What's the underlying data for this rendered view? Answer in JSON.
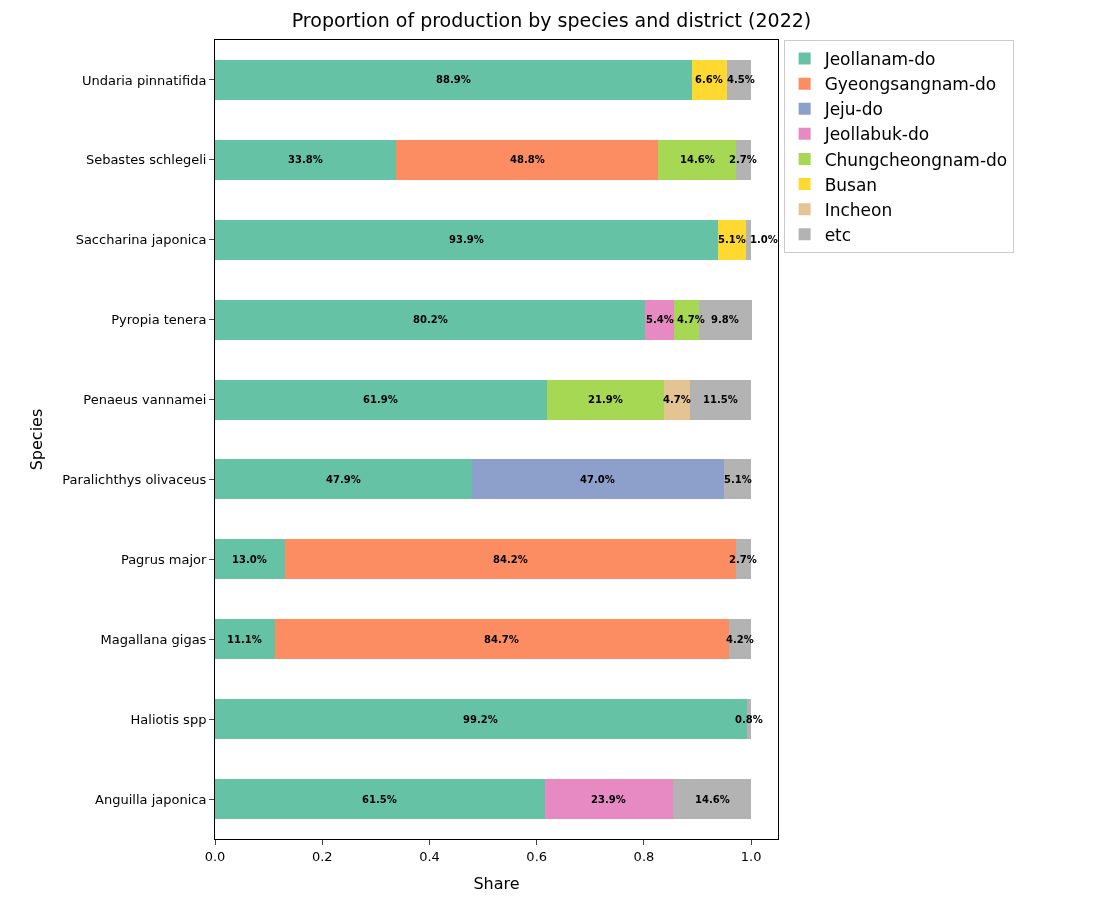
{
  "chart_data": {
    "type": "bar",
    "orientation": "horizontal",
    "stacked": true,
    "title": "Proportion of production by species and district (2022)",
    "xlabel": "Share",
    "ylabel": "Species",
    "categories": [
      "Undaria pinnatifida",
      "Sebastes schlegeli",
      "Saccharina japonica",
      "Pyropia tenera",
      "Penaeus vannamei",
      "Paralichthys olivaceus",
      "Pagrus major",
      "Magallana gigas",
      "Haliotis spp",
      "Anguilla japonica"
    ],
    "series": [
      {
        "name": "Jeollanam-do",
        "color": "#66c2a5",
        "values": [
          0.889,
          0.338,
          0.939,
          0.802,
          0.619,
          0.479,
          0.13,
          0.111,
          0.992,
          0.615
        ],
        "value_labels": [
          "88.9%",
          "33.8%",
          "93.9%",
          "80.2%",
          "61.9%",
          "47.9%",
          "13.0%",
          "11.1%",
          "99.2%",
          "61.5%"
        ]
      },
      {
        "name": "Gyeongsangnam-do",
        "color": "#fc8d62",
        "values": [
          null,
          0.488,
          null,
          null,
          null,
          null,
          0.842,
          0.847,
          null,
          null
        ],
        "value_labels": [
          null,
          "48.8%",
          null,
          null,
          null,
          null,
          "84.2%",
          "84.7%",
          null,
          null
        ]
      },
      {
        "name": "Jeju-do",
        "color": "#8da0cb",
        "values": [
          null,
          null,
          null,
          null,
          null,
          0.47,
          null,
          null,
          null,
          null
        ],
        "value_labels": [
          null,
          null,
          null,
          null,
          null,
          "47.0%",
          null,
          null,
          null,
          null
        ]
      },
      {
        "name": "Jeollabuk-do",
        "color": "#e78ac3",
        "values": [
          null,
          null,
          null,
          0.054,
          null,
          null,
          null,
          null,
          null,
          0.239
        ],
        "value_labels": [
          null,
          null,
          null,
          "5.4%",
          null,
          null,
          null,
          null,
          null,
          "23.9%"
        ]
      },
      {
        "name": "Chungcheongnam-do",
        "color": "#a6d854",
        "values": [
          null,
          0.146,
          null,
          0.047,
          0.219,
          null,
          null,
          null,
          null,
          null
        ],
        "value_labels": [
          null,
          "14.6%",
          null,
          "4.7%",
          "21.9%",
          null,
          null,
          null,
          null,
          null
        ]
      },
      {
        "name": "Busan",
        "color": "#ffd92f",
        "values": [
          0.066,
          null,
          0.051,
          null,
          null,
          null,
          null,
          null,
          null,
          null
        ],
        "value_labels": [
          "6.6%",
          null,
          "5.1%",
          null,
          null,
          null,
          null,
          null,
          null,
          null
        ]
      },
      {
        "name": "Incheon",
        "color": "#e5c494",
        "values": [
          null,
          null,
          null,
          null,
          0.047,
          null,
          null,
          null,
          null,
          null
        ],
        "value_labels": [
          null,
          null,
          null,
          null,
          "4.7%",
          null,
          null,
          null,
          null,
          null
        ]
      },
      {
        "name": "etc",
        "color": "#b3b3b3",
        "values": [
          0.045,
          0.027,
          0.01,
          0.098,
          0.115,
          0.051,
          0.027,
          0.042,
          0.008,
          0.146
        ],
        "value_labels": [
          "4.5%",
          "2.7%",
          "1.0%",
          "9.8%",
          "11.5%",
          "5.1%",
          "2.7%",
          "4.2%",
          "0.8%",
          "14.6%"
        ]
      }
    ],
    "xlim": [
      0,
      1.05
    ],
    "xticks": [
      {
        "value": 0,
        "label": "0.0"
      },
      {
        "value": 0.2,
        "label": "0.2"
      },
      {
        "value": 0.4,
        "label": "0.4"
      },
      {
        "value": 0.6,
        "label": "0.6"
      },
      {
        "value": 0.8,
        "label": "0.8"
      },
      {
        "value": 1.0,
        "label": "1.0"
      }
    ],
    "legend": "top right"
  }
}
